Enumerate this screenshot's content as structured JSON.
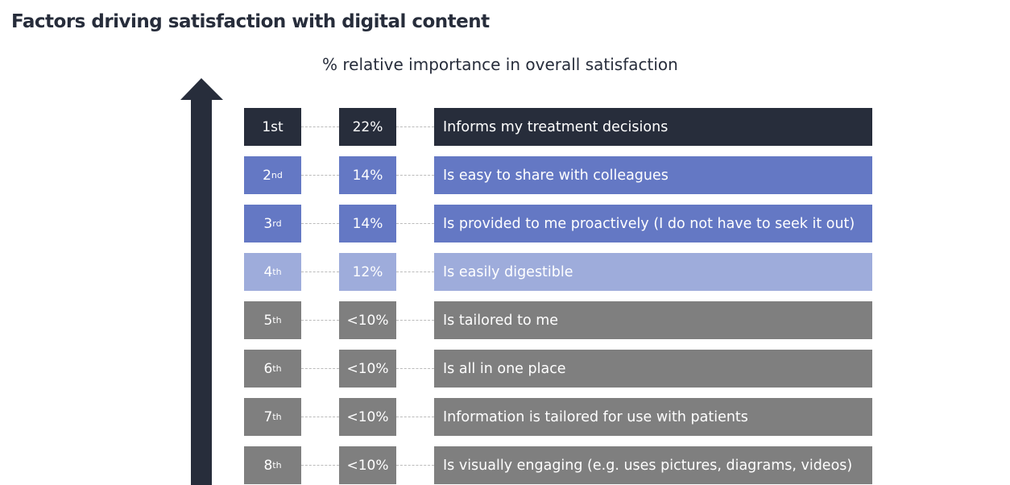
{
  "chart_data": {
    "type": "table",
    "title": "Factors driving satisfaction with digital content",
    "subtitle": "% relative importance in overall satisfaction",
    "rows": [
      {
        "rank": "1st",
        "rank_num": "1",
        "rank_suffix": "st",
        "pct": "22%",
        "label": "Informs my treatment decisions",
        "color": "#272d3b"
      },
      {
        "rank": "2nd",
        "rank_num": "2",
        "rank_suffix": "nd",
        "pct": "14%",
        "label": "Is easy to share with colleagues",
        "color": "#6478c4"
      },
      {
        "rank": "3rd",
        "rank_num": "3",
        "rank_suffix": "rd",
        "pct": "14%",
        "label": "Is provided to me proactively (I do not have to seek it out)",
        "color": "#6478c4"
      },
      {
        "rank": "4th",
        "rank_num": "4",
        "rank_suffix": "th",
        "pct": "12%",
        "label": "Is easily digestible",
        "color": "#9eacdb"
      },
      {
        "rank": "5th",
        "rank_num": "5",
        "rank_suffix": "th",
        "pct": "<10%",
        "label": "Is tailored to me",
        "color": "#7f7f7f"
      },
      {
        "rank": "6th",
        "rank_num": "6",
        "rank_suffix": "th",
        "pct": "<10%",
        "label": "Is all in one place",
        "color": "#7f7f7f"
      },
      {
        "rank": "7th",
        "rank_num": "7",
        "rank_suffix": "th",
        "pct": "<10%",
        "label": "Information is tailored for use with patients",
        "color": "#7f7f7f"
      },
      {
        "rank": "8th",
        "rank_num": "8",
        "rank_suffix": "th",
        "pct": "<10%",
        "label": "Is visually engaging (e.g. uses pictures, diagrams, videos)",
        "color": "#7f7f7f"
      }
    ]
  }
}
